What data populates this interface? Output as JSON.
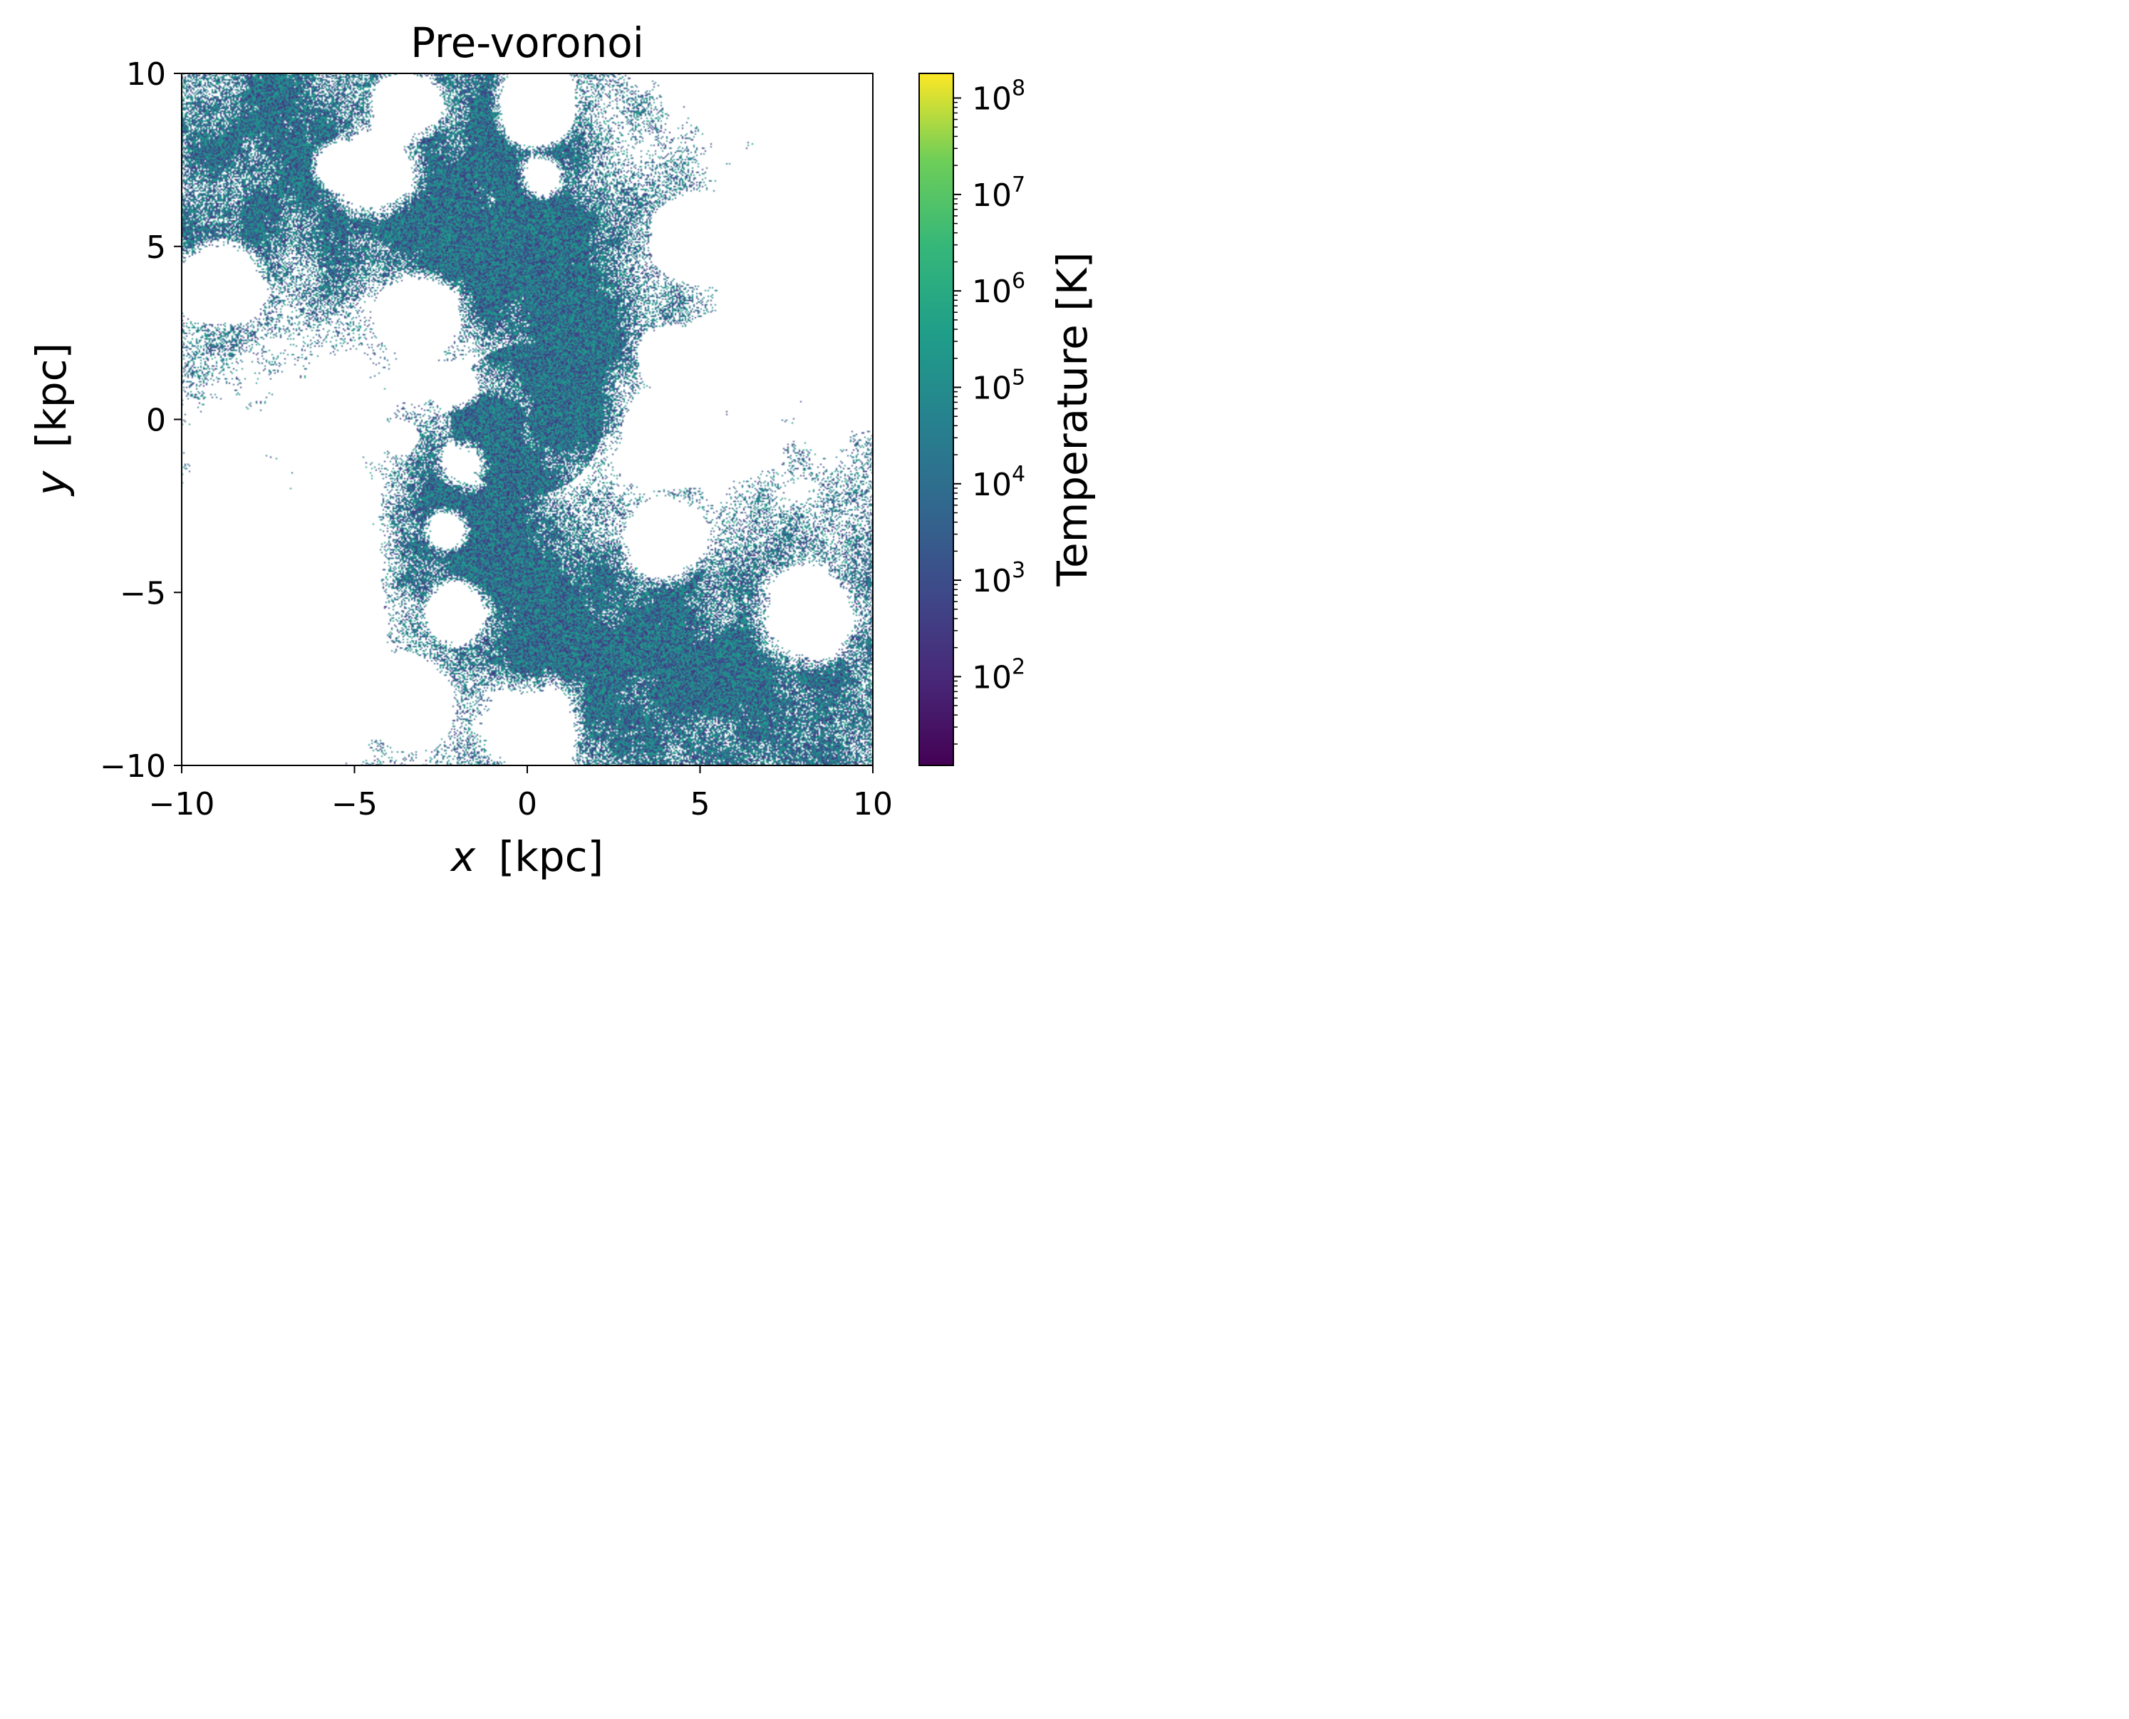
{
  "chart_data": {
    "type": "heatmap",
    "title": "Pre-voronoi",
    "xlabel_var": "x",
    "xlabel_unit": "[kpc]",
    "ylabel_var": "y",
    "ylabel_unit": "[kpc]",
    "xlim": [
      -10,
      10
    ],
    "ylim": [
      -10,
      10
    ],
    "xticks": [
      -10,
      -5,
      0,
      5,
      10
    ],
    "yticks": [
      -10,
      -5,
      0,
      5,
      10
    ],
    "xtick_labels": [
      "−10",
      "−5",
      "0",
      "5",
      "10"
    ],
    "ytick_labels": [
      "−10",
      "−5",
      "0",
      "5",
      "10"
    ],
    "colorbar": {
      "label": "Temperature [K]",
      "scale": "log",
      "min": 12,
      "max": 180000000,
      "colormap": "viridis",
      "tick_values": [
        100,
        1000,
        10000,
        100000,
        1000000,
        10000000,
        100000000
      ],
      "tick_labels": [
        {
          "base": "10",
          "exp": "2"
        },
        {
          "base": "10",
          "exp": "3"
        },
        {
          "base": "10",
          "exp": "4"
        },
        {
          "base": "10",
          "exp": "5"
        },
        {
          "base": "10",
          "exp": "6"
        },
        {
          "base": "10",
          "exp": "7"
        },
        {
          "base": "10",
          "exp": "8"
        }
      ]
    },
    "grid": false,
    "background_color": "#ffffff",
    "colors": {
      "cold_gas": "#3b528b",
      "warm_gas": "#21918c",
      "hot_gas": "#5ec962",
      "very_hot_gas": "#fde725"
    },
    "description_note": "Face-on gas temperature map of a spiral galaxy: a central bulge with spiral arms of ~10^3.5–10^4.5 K gas, empty (white) bubble-like cavities scattered across the disk."
  }
}
